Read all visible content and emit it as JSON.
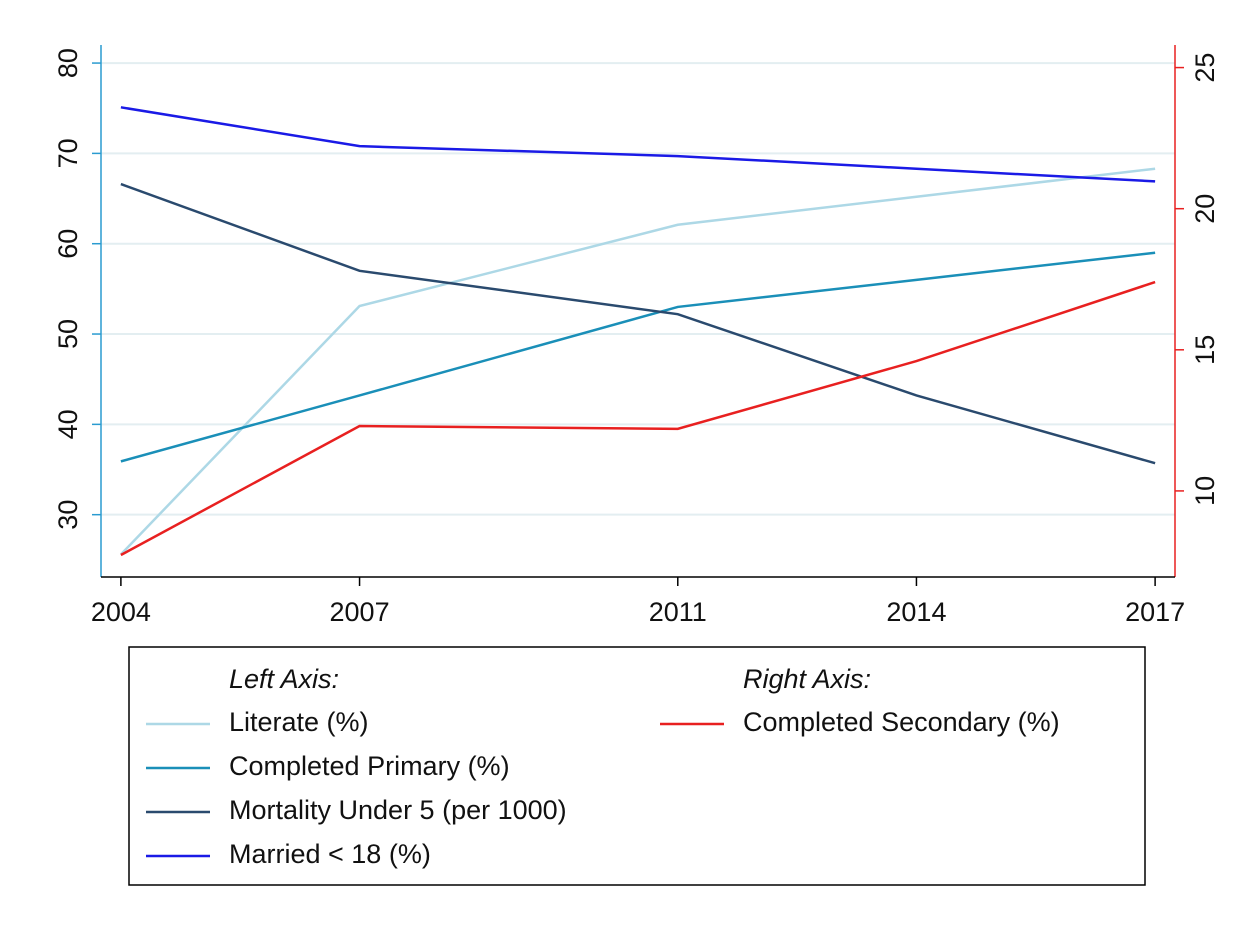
{
  "chart_data": {
    "type": "line",
    "x": [
      2004,
      2007,
      2011,
      2014,
      2017
    ],
    "xlim": [
      2003.75,
      2017.25
    ],
    "xticks": [
      2004,
      2007,
      2011,
      2014,
      2017
    ],
    "ylim": [
      23.1,
      82
    ],
    "yticks": [
      30,
      40,
      50,
      60,
      70,
      80
    ],
    "y2lim": [
      6.95,
      25.8
    ],
    "y2ticks": [
      10,
      15,
      20,
      25
    ],
    "grid": true,
    "y_axis_color": "#2a9bd0",
    "y2_axis_color": "#e82020",
    "legend_titles": {
      "y": "Left Axis:",
      "y2": "Right Axis:"
    },
    "series": [
      {
        "name": "Literate (%)",
        "color": "#add8e6",
        "axis": "y",
        "values": [
          25.6,
          53.1,
          62.1,
          65.2,
          68.3
        ]
      },
      {
        "name": "Completed Primary (%)",
        "color": "#1a8fb8",
        "axis": "y",
        "values": [
          35.9,
          43.2,
          53.0,
          56.0,
          59.0
        ]
      },
      {
        "name": "Mortality Under 5 (per 1000)",
        "color": "#2a4a6e",
        "axis": "y",
        "values": [
          66.6,
          57.0,
          52.2,
          43.2,
          35.7
        ]
      },
      {
        "name": "Married < 18 (%)",
        "color": "#1a1ae6",
        "axis": "y",
        "values": [
          75.1,
          70.8,
          69.7,
          68.3,
          66.9
        ]
      },
      {
        "name": "Completed Secondary (%)",
        "color": "#e82020",
        "axis": "y2",
        "values": [
          7.73,
          12.3,
          12.2,
          14.6,
          17.4
        ]
      }
    ]
  }
}
